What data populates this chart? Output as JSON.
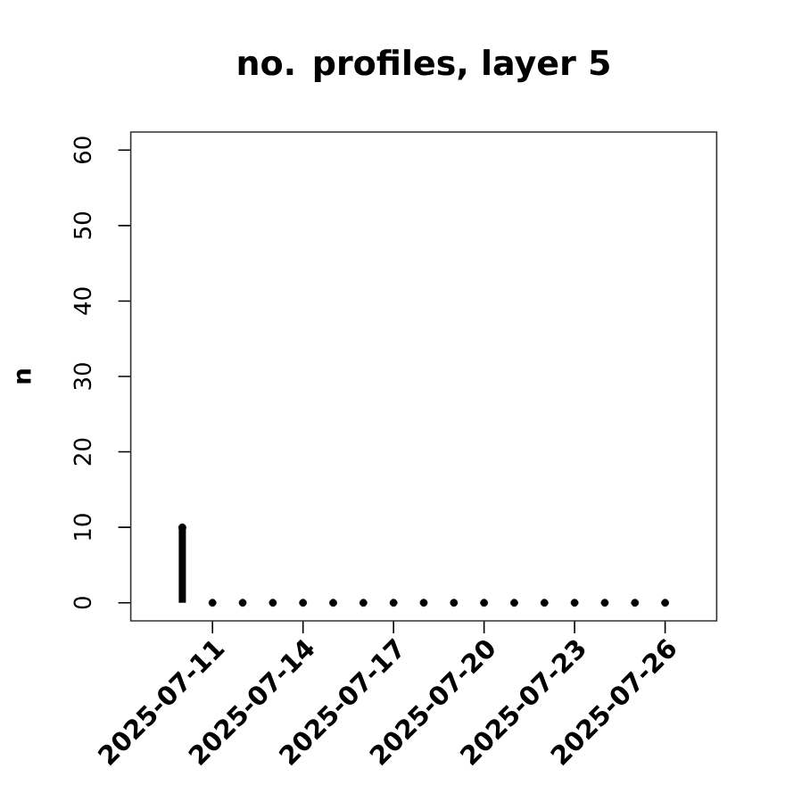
{
  "chart_data": {
    "type": "lollipop",
    "title": "no. profiles, layer 5",
    "ylabel": "n",
    "x": [
      "2025-07-10",
      "2025-07-11",
      "2025-07-12",
      "2025-07-13",
      "2025-07-14",
      "2025-07-15",
      "2025-07-16",
      "2025-07-17",
      "2025-07-18",
      "2025-07-19",
      "2025-07-20",
      "2025-07-21",
      "2025-07-22",
      "2025-07-23",
      "2025-07-24",
      "2025-07-25",
      "2025-07-26"
    ],
    "values": [
      10,
      0,
      0,
      0,
      0,
      0,
      0,
      0,
      0,
      0,
      0,
      0,
      0,
      0,
      0,
      0,
      0
    ],
    "color": "#000000",
    "marker": "circle",
    "xlim": [
      "2025-07-08T07:00",
      "2025-07-27T17:00"
    ],
    "ylim": [
      -2.4,
      62.4
    ],
    "xticks": [
      "2025-07-11",
      "2025-07-14",
      "2025-07-17",
      "2025-07-20",
      "2025-07-23",
      "2025-07-26"
    ],
    "yticks": [
      0,
      10,
      20,
      30,
      40,
      50,
      60
    ]
  }
}
